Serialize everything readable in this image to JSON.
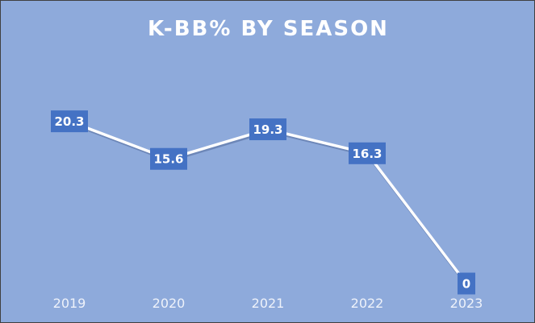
{
  "colors": {
    "background": "#8eaadb",
    "line": "#ffffff",
    "label_box": "#4472c4",
    "label_text": "#ffffff",
    "tick_text": "#eef2fa"
  },
  "chart_data": {
    "type": "line",
    "title": "K-BB% BY SEASON",
    "categories": [
      "2019",
      "2020",
      "2021",
      "2022",
      "2023"
    ],
    "values": [
      20.3,
      15.6,
      19.3,
      16.3,
      0
    ],
    "data_labels": [
      "20.3",
      "15.6",
      "19.3",
      "16.3",
      "0"
    ],
    "xlabel": "",
    "ylabel": "",
    "ylim": [
      0,
      25
    ],
    "grid": false,
    "drop_lines": true,
    "legend": "none"
  }
}
